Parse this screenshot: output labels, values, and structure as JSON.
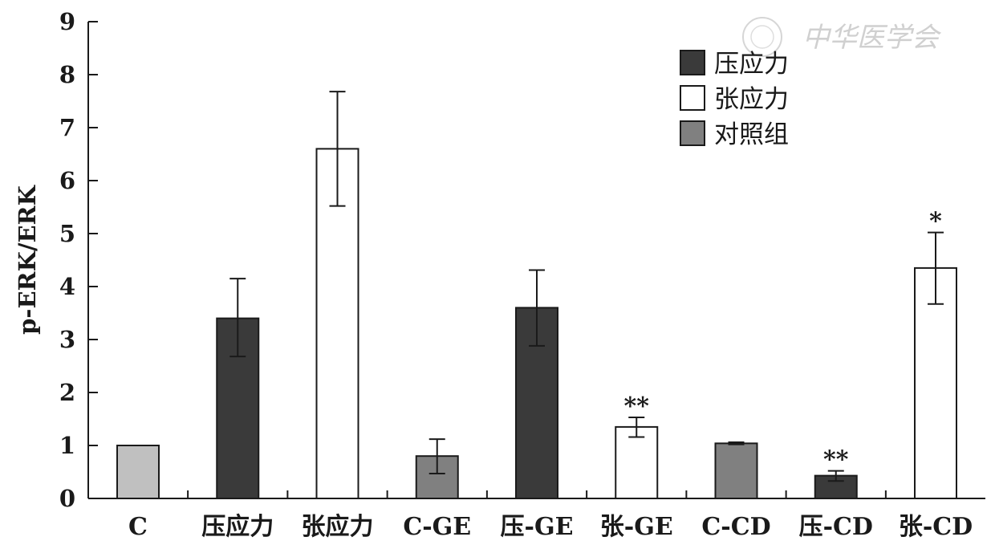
{
  "watermark": {
    "text": "中华医学会"
  },
  "chart_data": {
    "type": "bar",
    "ylabel": "p-ERK/ERK",
    "xlabel": "",
    "ylim": [
      0,
      9
    ],
    "yticks": [
      0,
      1,
      2,
      3,
      4,
      5,
      6,
      7,
      8,
      9
    ],
    "grid": false,
    "legend_position": "top-right",
    "categories": [
      "C",
      "压应力",
      "张应力",
      "C-GE",
      "压-GE",
      "张-GE",
      "C-CD",
      "压-CD",
      "张-CD"
    ],
    "values": [
      1.0,
      3.4,
      6.6,
      0.8,
      3.6,
      1.35,
      1.04,
      0.43,
      4.35
    ],
    "error_plus": [
      0,
      0.75,
      1.08,
      0.32,
      0.71,
      0.18,
      0.02,
      0.09,
      0.67
    ],
    "error_minus": [
      0,
      0.72,
      1.08,
      0.33,
      0.72,
      0.19,
      0.02,
      0.1,
      0.68
    ],
    "annotations": [
      "",
      "",
      "",
      "",
      "",
      "**",
      "",
      "**",
      "*"
    ],
    "bar_groups": [
      "control_light",
      "compression",
      "tension",
      "control",
      "compression",
      "tension",
      "control",
      "compression",
      "tension"
    ],
    "legend": [
      {
        "key": "compression",
        "label": "压应力",
        "color": "#3a3a3a"
      },
      {
        "key": "tension",
        "label": "张应力",
        "color": "#ffffff"
      },
      {
        "key": "control",
        "label": "对照组",
        "color": "#808080"
      }
    ],
    "colors": {
      "compression": "#3a3a3a",
      "tension": "#ffffff",
      "control": "#808080",
      "control_light": "#c0c0c0",
      "stroke": "#1a1a1a"
    }
  }
}
